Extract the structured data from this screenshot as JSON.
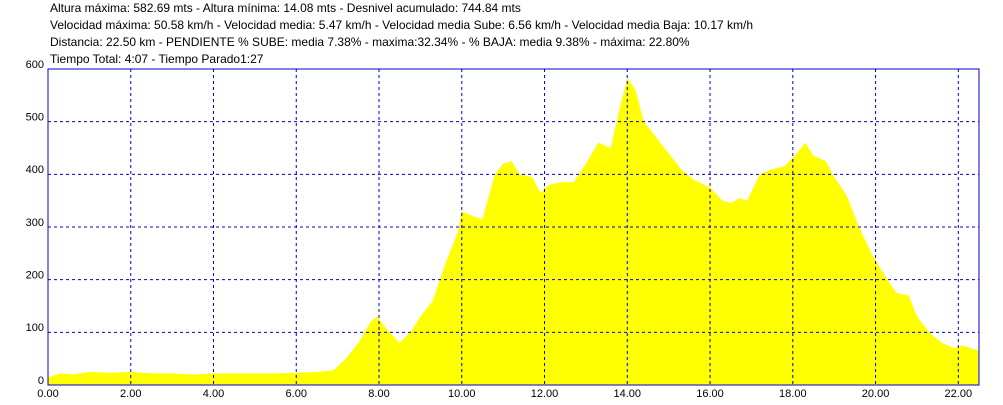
{
  "chart_data": {
    "type": "area",
    "header_lines": [
      "Altura máxima: 582.69 mts - Altura mínima: 14.08 mts - Desnivel acumulado: 744.84 mts",
      "Velocidad máxima: 50.58 km/h - Velocidad media: 5.47 km/h - Velocidad media Sube: 6.56 km/h - Velocidad media Baja: 10.17 km/h",
      "Distancia: 22.50 km - PENDIENTE  % SUBE: media 7.38% - maxima:32.34%  - % BAJA: media 9.38% - máxima: 22.80%",
      "Tiempo Total: 4:07 - Tiempo Parado1:27"
    ],
    "color": "#ffff00",
    "grid": true,
    "x": [
      0,
      0.3,
      0.6,
      1.0,
      1.5,
      2.0,
      2.5,
      3.0,
      3.5,
      4.0,
      4.5,
      5.0,
      5.5,
      6.0,
      6.5,
      6.9,
      7.2,
      7.5,
      7.8,
      7.95,
      8.2,
      8.5,
      8.8,
      9.0,
      9.3,
      9.6,
      9.9,
      10.0,
      10.3,
      10.5,
      10.8,
      11.0,
      11.2,
      11.4,
      11.7,
      11.9,
      12.1,
      12.4,
      12.7,
      13.0,
      13.3,
      13.6,
      13.8,
      14.0,
      14.2,
      14.4,
      14.7,
      15.0,
      15.3,
      15.6,
      16.0,
      16.3,
      16.5,
      16.7,
      16.9,
      17.2,
      17.5,
      17.8,
      18.1,
      18.3,
      18.5,
      18.8,
      19.0,
      19.3,
      19.6,
      19.9,
      20.2,
      20.5,
      20.8,
      21.0,
      21.3,
      21.6,
      21.9,
      22.1,
      22.3,
      22.5
    ],
    "values": [
      15,
      22,
      20,
      25,
      23,
      25,
      22,
      22,
      20,
      22,
      22,
      22,
      22,
      23,
      25,
      28,
      50,
      80,
      120,
      130,
      105,
      80,
      105,
      130,
      160,
      230,
      290,
      330,
      320,
      315,
      400,
      420,
      425,
      400,
      395,
      365,
      380,
      385,
      385,
      420,
      460,
      450,
      520,
      582,
      560,
      500,
      470,
      440,
      410,
      390,
      375,
      350,
      345,
      355,
      350,
      400,
      410,
      415,
      440,
      460,
      435,
      425,
      395,
      360,
      300,
      250,
      210,
      175,
      170,
      130,
      100,
      80,
      70,
      75,
      70,
      65
    ],
    "xlim": [
      0,
      22.5
    ],
    "ylim": [
      0,
      600
    ],
    "xticks": [
      {
        "value": 0,
        "label": "0.00"
      },
      {
        "value": 2,
        "label": "2.00"
      },
      {
        "value": 4,
        "label": "4.00"
      },
      {
        "value": 6,
        "label": "6.00"
      },
      {
        "value": 8,
        "label": "8.00"
      },
      {
        "value": 10,
        "label": "10.00"
      },
      {
        "value": 12,
        "label": "12.00"
      },
      {
        "value": 14,
        "label": "14.00"
      },
      {
        "value": 16,
        "label": "16.00"
      },
      {
        "value": 18,
        "label": "18.00"
      },
      {
        "value": 20,
        "label": "20.00"
      },
      {
        "value": 22,
        "label": "22.00"
      }
    ],
    "yticks": [
      0,
      100,
      200,
      300,
      400,
      500,
      600
    ]
  }
}
